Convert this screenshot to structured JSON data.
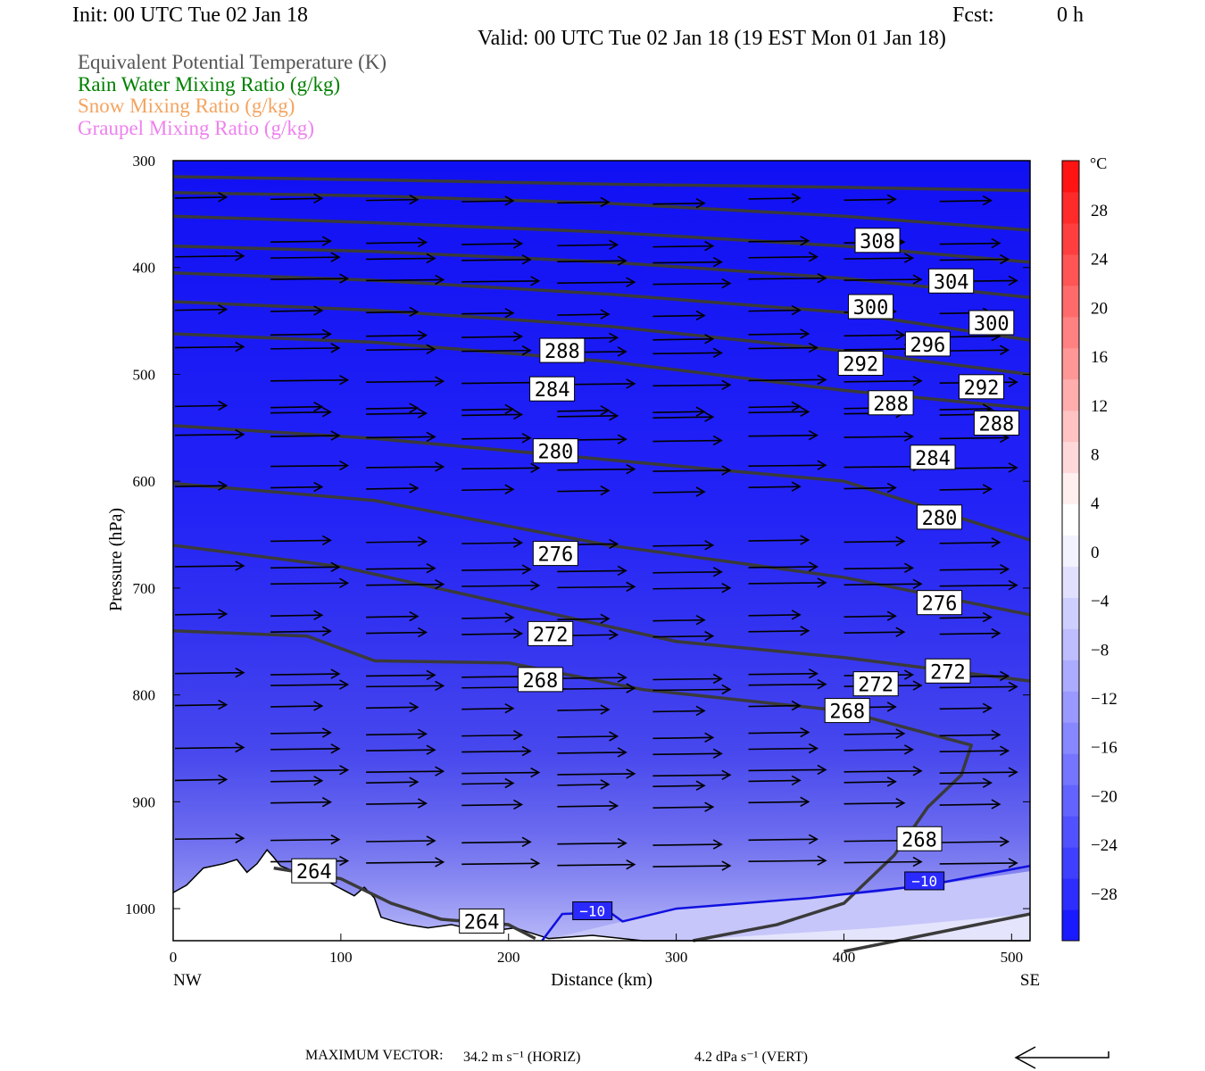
{
  "header": {
    "init": "Init: 00 UTC Tue 02 Jan 18",
    "fcst_label": "Fcst:",
    "fcst_value": "0 h",
    "valid": "Valid: 00 UTC Tue 02 Jan 18 (19 EST Mon 01 Jan 18)"
  },
  "legend": [
    {
      "label": "Equivalent Potential Temperature (K)",
      "color": "#555555"
    },
    {
      "label": "Rain Water Mixing Ratio (g/kg)",
      "color": "#008000"
    },
    {
      "label": "Snow Mixing Ratio (g/kg)",
      "color": "#f4a460"
    },
    {
      "label": "Graupel Mixing Ratio (g/kg)",
      "color": "#ee82ee"
    }
  ],
  "footer": {
    "max_vector_label": "MAXIMUM VECTOR:",
    "horiz": "34.2 m s⁻¹ (HORIZ)",
    "vert": "4.2 dPa s⁻¹ (VERT)"
  },
  "chart_data": {
    "type": "contour cross-section",
    "xlabel": "Distance (km)",
    "ylabel": "Pressure (hPa)",
    "x_ticks": [
      0,
      100,
      200,
      300,
      400,
      500
    ],
    "x_end_labels": [
      "NW",
      "SE"
    ],
    "y_ticks": [
      300,
      400,
      500,
      600,
      700,
      800,
      900,
      1000
    ],
    "xlim": [
      0,
      511
    ],
    "ylim": [
      300,
      1030
    ],
    "y_reversed": true,
    "colorbar": {
      "unit": "°C",
      "tick_labels": [
        "28",
        "24",
        "20",
        "16",
        "12",
        "8",
        "4",
        "0",
        "−4",
        "−8",
        "−12",
        "−16",
        "−20",
        "−24",
        "−28"
      ],
      "colors": [
        "#1a1aff",
        "#2d2dff",
        "#3f3fff",
        "#5151ff",
        "#6363ff",
        "#7575ff",
        "#8787ff",
        "#9999ff",
        "#ababff",
        "#bdbdff",
        "#cfcfff",
        "#e1e1ff",
        "#f3f3ff",
        "#ffffff",
        "#ffefef",
        "#ffd9d9",
        "#ffc3c3",
        "#ffadad",
        "#ff9797",
        "#ff8181",
        "#ff6b6b",
        "#ff5555",
        "#ff3f3f",
        "#ff2a2a",
        "#ff1414"
      ]
    },
    "theta_e_contour_labels": [
      {
        "text": "308",
        "x": 420,
        "p": 375
      },
      {
        "text": "304",
        "x": 464,
        "p": 413
      },
      {
        "text": "300",
        "x": 416,
        "p": 437
      },
      {
        "text": "300",
        "x": 488,
        "p": 452
      },
      {
        "text": "296",
        "x": 450,
        "p": 472
      },
      {
        "text": "292",
        "x": 410,
        "p": 490
      },
      {
        "text": "292",
        "x": 482,
        "p": 512
      },
      {
        "text": "288",
        "x": 232,
        "p": 478
      },
      {
        "text": "288",
        "x": 428,
        "p": 527
      },
      {
        "text": "288",
        "x": 491,
        "p": 546
      },
      {
        "text": "284",
        "x": 226,
        "p": 514
      },
      {
        "text": "284",
        "x": 453,
        "p": 578
      },
      {
        "text": "280",
        "x": 228,
        "p": 572
      },
      {
        "text": "280",
        "x": 457,
        "p": 634
      },
      {
        "text": "276",
        "x": 228,
        "p": 668
      },
      {
        "text": "276",
        "x": 457,
        "p": 714
      },
      {
        "text": "272",
        "x": 225,
        "p": 743
      },
      {
        "text": "272",
        "x": 419,
        "p": 790
      },
      {
        "text": "272",
        "x": 462,
        "p": 778
      },
      {
        "text": "268",
        "x": 219,
        "p": 786
      },
      {
        "text": "268",
        "x": 402,
        "p": 815
      },
      {
        "text": "268",
        "x": 445,
        "p": 935
      },
      {
        "text": "264",
        "x": 84,
        "p": 965
      },
      {
        "text": "264",
        "x": 184,
        "p": 1012
      }
    ],
    "temperature_contour_labels": [
      {
        "text": "−10",
        "x": 250,
        "p": 1002
      },
      {
        "text": "−10",
        "x": 448,
        "p": 974
      }
    ]
  }
}
